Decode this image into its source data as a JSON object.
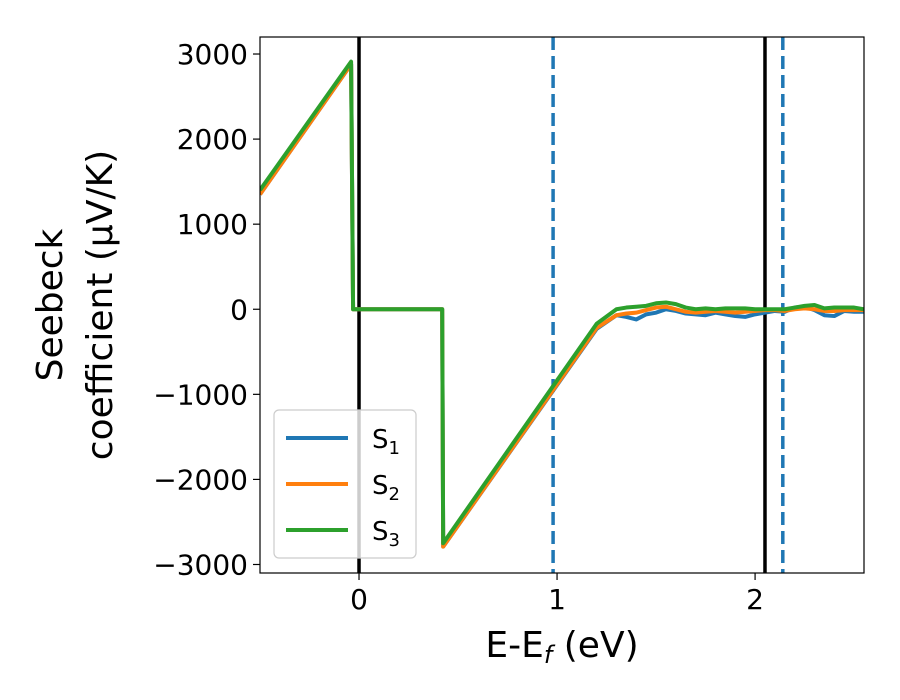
{
  "chart_data": {
    "type": "line",
    "xlabel": "E-E",
    "xlabel_sub": "f",
    "xlabel_unit": " (eV)",
    "ylabel_line1": "Seebeck",
    "ylabel_line2": "coefficient  (μV/K)",
    "xlim": [
      -0.5,
      2.55
    ],
    "ylim": [
      -3100,
      3200
    ],
    "xticks": [
      0,
      1,
      2
    ],
    "xtick_labels": [
      "0",
      "1",
      "2"
    ],
    "yticks": [
      3000,
      2000,
      1000,
      0,
      -1000,
      -2000,
      -3000
    ],
    "ytick_labels": [
      "3000",
      "2000",
      "1000",
      "0",
      "−1000",
      "−2000",
      "−3000"
    ],
    "legend_position": "lower-left",
    "vlines": [
      {
        "x": 0.0,
        "style": "solid",
        "color": "#000000"
      },
      {
        "x": 2.05,
        "style": "solid",
        "color": "#000000"
      },
      {
        "x": 0.98,
        "style": "dashed",
        "color": "#1f77b4"
      },
      {
        "x": 2.14,
        "style": "dashed",
        "color": "#1f77b4"
      }
    ],
    "series": [
      {
        "name": "S",
        "sub": "1",
        "color": "#1f77b4",
        "x": [
          -0.5,
          -0.04,
          -0.03,
          0.42,
          0.425,
          1.2,
          1.3,
          1.35,
          1.4,
          1.45,
          1.5,
          1.55,
          1.6,
          1.65,
          1.7,
          1.75,
          1.8,
          1.85,
          1.9,
          1.95,
          2.0,
          2.05,
          2.1,
          2.15,
          2.2,
          2.25,
          2.3,
          2.35,
          2.4,
          2.45,
          2.5,
          2.55
        ],
        "y": [
          1350,
          2880,
          0,
          0,
          -2790,
          -230,
          -70,
          -90,
          -120,
          -60,
          -40,
          0,
          -20,
          -50,
          -60,
          -70,
          -40,
          -60,
          -80,
          -90,
          -60,
          -40,
          -20,
          -30,
          20,
          30,
          -10,
          -70,
          -80,
          -20,
          -30,
          -30
        ]
      },
      {
        "name": "S",
        "sub": "2",
        "color": "#ff7f0e",
        "x": [
          -0.5,
          -0.04,
          -0.03,
          0.42,
          0.425,
          1.2,
          1.3,
          1.35,
          1.4,
          1.45,
          1.5,
          1.55,
          1.6,
          1.65,
          1.7,
          1.75,
          1.8,
          1.85,
          1.9,
          1.95,
          2.0,
          2.05,
          2.1,
          2.15,
          2.2,
          2.25,
          2.3,
          2.35,
          2.4,
          2.45,
          2.5,
          2.55
        ],
        "y": [
          1350,
          2880,
          0,
          0,
          -2790,
          -220,
          -70,
          -50,
          -40,
          -10,
          20,
          30,
          0,
          -30,
          -40,
          -30,
          -20,
          -30,
          -40,
          -30,
          -20,
          -10,
          -10,
          -20,
          0,
          10,
          0,
          -20,
          -20,
          -10,
          -10,
          -10
        ]
      },
      {
        "name": "S",
        "sub": "3",
        "color": "#2ca02c",
        "x": [
          -0.5,
          -0.04,
          -0.03,
          0.42,
          0.425,
          1.2,
          1.3,
          1.35,
          1.4,
          1.45,
          1.5,
          1.55,
          1.6,
          1.65,
          1.7,
          1.75,
          1.8,
          1.85,
          1.9,
          1.95,
          2.0,
          2.05,
          2.1,
          2.15,
          2.2,
          2.25,
          2.3,
          2.35,
          2.4,
          2.45,
          2.5,
          2.55
        ],
        "y": [
          1400,
          2910,
          0,
          0,
          -2750,
          -170,
          0,
          20,
          30,
          40,
          70,
          80,
          60,
          20,
          0,
          10,
          0,
          10,
          10,
          10,
          0,
          0,
          0,
          0,
          20,
          40,
          50,
          10,
          20,
          20,
          20,
          0
        ]
      }
    ]
  }
}
